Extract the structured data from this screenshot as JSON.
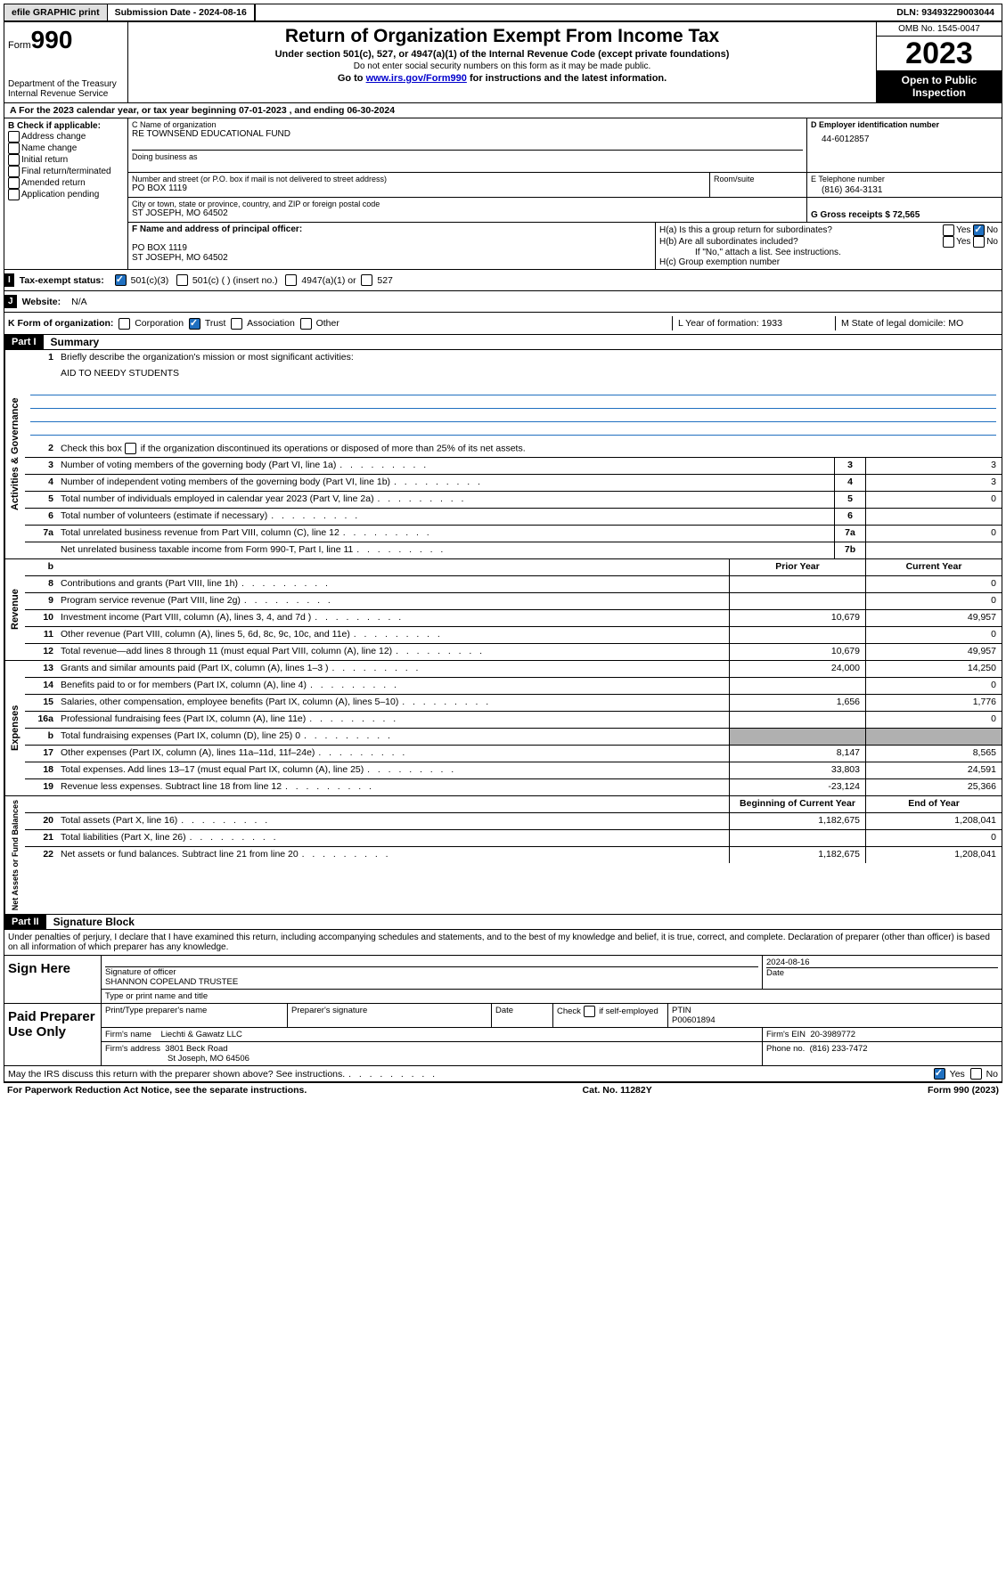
{
  "topbar": {
    "efile": "efile GRAPHIC print",
    "submission_label": "Submission Date - 2024-08-16",
    "dln": "DLN: 93493229003044"
  },
  "header": {
    "form_prefix": "Form",
    "form_num": "990",
    "dept": "Department of the Treasury Internal Revenue Service",
    "title": "Return of Organization Exempt From Income Tax",
    "sub": "Under section 501(c), 527, or 4947(a)(1) of the Internal Revenue Code (except private foundations)",
    "note1": "Do not enter social security numbers on this form as it may be made public.",
    "note2_pre": "Go to ",
    "note2_link": "www.irs.gov/Form990",
    "note2_post": " for instructions and the latest information.",
    "omb": "OMB No. 1545-0047",
    "year": "2023",
    "open": "Open to Public Inspection"
  },
  "row_a": "A For the 2023 calendar year, or tax year beginning 07-01-2023   , and ending 06-30-2024",
  "col_b": {
    "header": "B Check if applicable:",
    "items": [
      "Address change",
      "Name change",
      "Initial return",
      "Final return/terminated",
      "Amended return",
      "Application pending"
    ]
  },
  "c": {
    "name_label": "C Name of organization",
    "name": "RE TOWNSEND EDUCATIONAL FUND",
    "dba_label": "Doing business as",
    "addr_label": "Number and street (or P.O. box if mail is not delivered to street address)",
    "addr": "PO BOX 1119",
    "room_label": "Room/suite",
    "city_label": "City or town, state or province, country, and ZIP or foreign postal code",
    "city": "ST JOSEPH, MO  64502"
  },
  "d": {
    "ein_label": "D Employer identification number",
    "ein": "44-6012857",
    "tel_label": "E Telephone number",
    "tel": "(816) 364-3131",
    "gross_label": "G Gross receipts $ 72,565"
  },
  "f": {
    "label": "F  Name and address of principal officer:",
    "l1": "PO BOX 1119",
    "l2": "ST JOSEPH, MO  64502"
  },
  "h": {
    "a": "H(a)  Is this a group return for subordinates?",
    "b": "H(b)  Are all subordinates included?",
    "b_note": "If \"No,\" attach a list. See instructions.",
    "c": "H(c)  Group exemption number"
  },
  "i": {
    "label": "Tax-exempt status:",
    "o1": "501(c)(3)",
    "o2": "501(c) (  ) (insert no.)",
    "o3": "4947(a)(1) or",
    "o4": "527"
  },
  "j": {
    "label": "Website:",
    "val": "N/A"
  },
  "k": {
    "label": "K Form of organization:",
    "o1": "Corporation",
    "o2": "Trust",
    "o3": "Association",
    "o4": "Other",
    "l_label": "L Year of formation: 1933",
    "m_label": "M State of legal domicile: MO"
  },
  "part1": {
    "header": "Part I",
    "title": "Summary",
    "mission_label": "Briefly describe the organization's mission or most significant activities:",
    "mission": "AID TO NEEDY STUDENTS",
    "line2": "Check this box      if the organization discontinued its operations or disposed of more than 25% of its net assets.",
    "lines_gov": [
      {
        "n": "3",
        "t": "Number of voting members of the governing body (Part VI, line 1a)",
        "b": "3",
        "v": "3"
      },
      {
        "n": "4",
        "t": "Number of independent voting members of the governing body (Part VI, line 1b)",
        "b": "4",
        "v": "3"
      },
      {
        "n": "5",
        "t": "Total number of individuals employed in calendar year 2023 (Part V, line 2a)",
        "b": "5",
        "v": "0"
      },
      {
        "n": "6",
        "t": "Total number of volunteers (estimate if necessary)",
        "b": "6",
        "v": ""
      },
      {
        "n": "7a",
        "t": "Total unrelated business revenue from Part VIII, column (C), line 12",
        "b": "7a",
        "v": "0"
      },
      {
        "n": "",
        "t": "Net unrelated business taxable income from Form 990-T, Part I, line 11",
        "b": "7b",
        "v": ""
      }
    ],
    "col_prior": "Prior Year",
    "col_current": "Current Year",
    "lines_rev": [
      {
        "n": "8",
        "t": "Contributions and grants (Part VIII, line 1h)",
        "p": "",
        "c": "0"
      },
      {
        "n": "9",
        "t": "Program service revenue (Part VIII, line 2g)",
        "p": "",
        "c": "0"
      },
      {
        "n": "10",
        "t": "Investment income (Part VIII, column (A), lines 3, 4, and 7d )",
        "p": "10,679",
        "c": "49,957"
      },
      {
        "n": "11",
        "t": "Other revenue (Part VIII, column (A), lines 5, 6d, 8c, 9c, 10c, and 11e)",
        "p": "",
        "c": "0"
      },
      {
        "n": "12",
        "t": "Total revenue—add lines 8 through 11 (must equal Part VIII, column (A), line 12)",
        "p": "10,679",
        "c": "49,957"
      }
    ],
    "lines_exp": [
      {
        "n": "13",
        "t": "Grants and similar amounts paid (Part IX, column (A), lines 1–3 )",
        "p": "24,000",
        "c": "14,250"
      },
      {
        "n": "14",
        "t": "Benefits paid to or for members (Part IX, column (A), line 4)",
        "p": "",
        "c": "0"
      },
      {
        "n": "15",
        "t": "Salaries, other compensation, employee benefits (Part IX, column (A), lines 5–10)",
        "p": "1,656",
        "c": "1,776"
      },
      {
        "n": "16a",
        "t": "Professional fundraising fees (Part IX, column (A), line 11e)",
        "p": "",
        "c": "0"
      },
      {
        "n": "b",
        "t": "Total fundraising expenses (Part IX, column (D), line 25) 0",
        "p": "shade",
        "c": "shade"
      },
      {
        "n": "17",
        "t": "Other expenses (Part IX, column (A), lines 11a–11d, 11f–24e)",
        "p": "8,147",
        "c": "8,565"
      },
      {
        "n": "18",
        "t": "Total expenses. Add lines 13–17 (must equal Part IX, column (A), line 25)",
        "p": "33,803",
        "c": "24,591"
      },
      {
        "n": "19",
        "t": "Revenue less expenses. Subtract line 18 from line 12",
        "p": "-23,124",
        "c": "25,366"
      }
    ],
    "col_begin": "Beginning of Current Year",
    "col_end": "End of Year",
    "lines_net": [
      {
        "n": "20",
        "t": "Total assets (Part X, line 16)",
        "p": "1,182,675",
        "c": "1,208,041"
      },
      {
        "n": "21",
        "t": "Total liabilities (Part X, line 26)",
        "p": "",
        "c": "0"
      },
      {
        "n": "22",
        "t": "Net assets or fund balances. Subtract line 21 from line 20",
        "p": "1,182,675",
        "c": "1,208,041"
      }
    ]
  },
  "part2": {
    "header": "Part II",
    "title": "Signature Block",
    "decl": "Under penalties of perjury, I declare that I have examined this return, including accompanying schedules and statements, and to the best of my knowledge and belief, it is true, correct, and complete. Declaration of preparer (other than officer) is based on all information of which preparer has any knowledge."
  },
  "sign": {
    "here": "Sign Here",
    "date": "2024-08-16",
    "sig_label": "Signature of officer",
    "officer": "SHANNON COPELAND  TRUSTEE",
    "type_label": "Type or print name and title",
    "date_label": "Date"
  },
  "paid": {
    "label": "Paid Preparer Use Only",
    "pname_label": "Print/Type preparer's name",
    "psig_label": "Preparer's signature",
    "date_label": "Date",
    "check_label": "Check        if self-employed",
    "ptin_label": "PTIN",
    "ptin": "P00601894",
    "firm_name_label": "Firm's name",
    "firm_name": "Liechti & Gawatz LLC",
    "firm_ein_label": "Firm's EIN",
    "firm_ein": "20-3989772",
    "firm_addr_label": "Firm's address",
    "firm_addr1": "3801 Beck Road",
    "firm_addr2": "St Joseph, MO  64506",
    "phone_label": "Phone no.",
    "phone": "(816) 233-7472"
  },
  "discuss": "May the IRS discuss this return with the preparer shown above? See instructions.",
  "footer": {
    "left": "For Paperwork Reduction Act Notice, see the separate instructions.",
    "mid": "Cat. No. 11282Y",
    "right_pre": "Form ",
    "right_b": "990",
    "right_post": " (2023)"
  },
  "yn": {
    "yes": "Yes",
    "no": "No"
  }
}
